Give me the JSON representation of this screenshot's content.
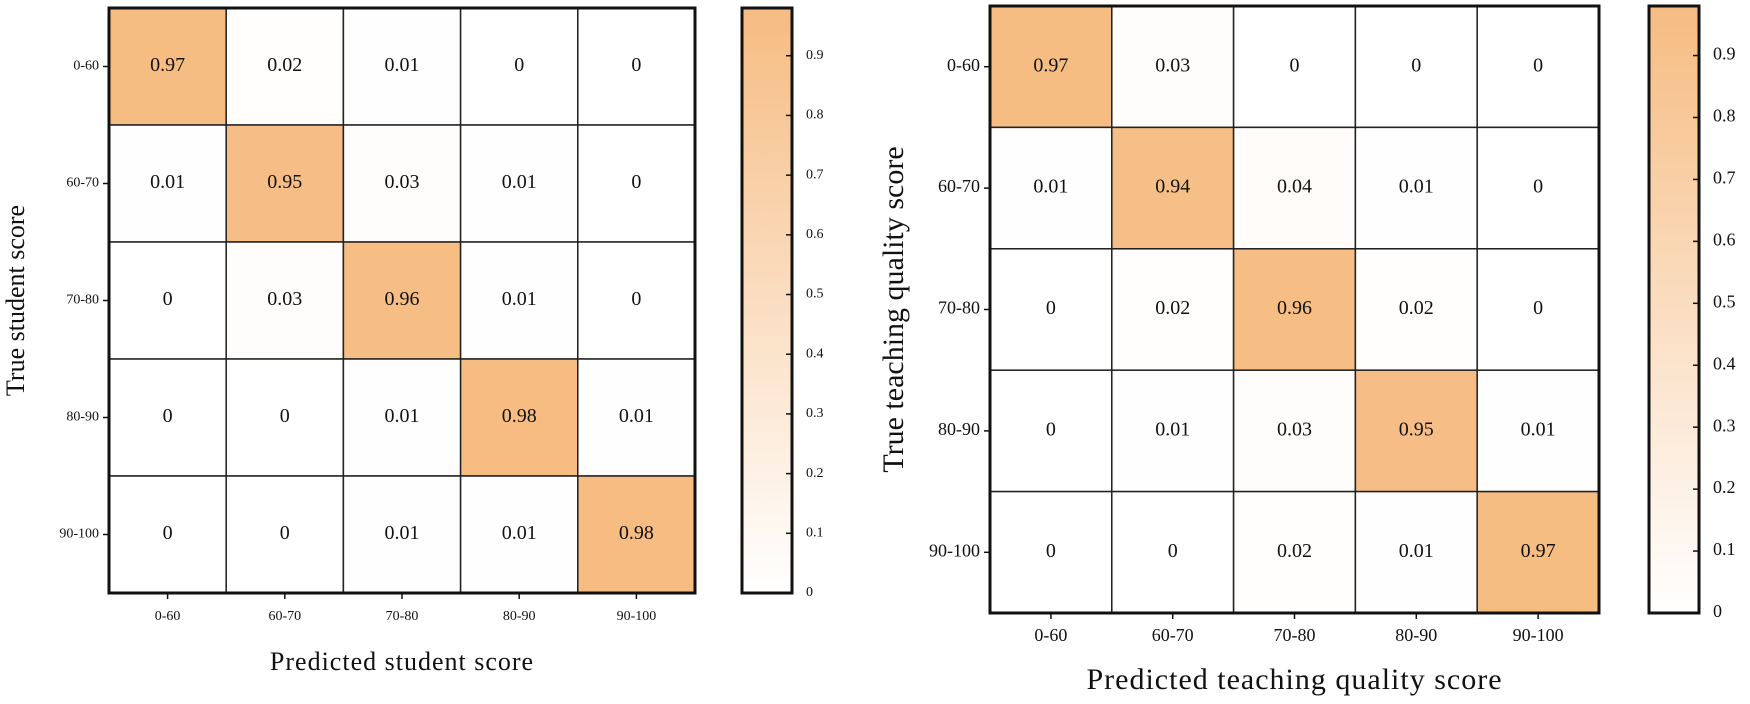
{
  "chart_data": [
    {
      "type": "heatmap",
      "x_label": "Predicted student score",
      "y_label": "True student score",
      "categories": [
        "0-60",
        "60-70",
        "70-80",
        "80-90",
        "90-100"
      ],
      "y_categories": [
        "0-60",
        "60-70",
        "70-80",
        "80-90",
        "90-100"
      ],
      "values": [
        [
          0.97,
          0.02,
          0.01,
          0,
          0
        ],
        [
          0.01,
          0.95,
          0.03,
          0.01,
          0
        ],
        [
          0,
          0.03,
          0.96,
          0.01,
          0
        ],
        [
          0,
          0,
          0.01,
          0.98,
          0.01
        ],
        [
          0,
          0,
          0.01,
          0.01,
          0.98
        ]
      ],
      "colormap": [
        "#ffffff",
        "#f6bc82"
      ],
      "clim": [
        0,
        0.98
      ],
      "cticks": [
        0,
        0.1,
        0.2,
        0.3,
        0.4,
        0.5,
        0.6,
        0.7,
        0.8,
        0.9
      ]
    },
    {
      "type": "heatmap",
      "x_label": "Predicted teaching quality score",
      "y_label": "True teaching quality score",
      "categories": [
        "0-60",
        "60-70",
        "70-80",
        "80-90",
        "90-100"
      ],
      "y_categories": [
        "0-60",
        "60-70",
        "70-80",
        "80-90",
        "90-100"
      ],
      "values": [
        [
          0.97,
          0.03,
          0,
          0,
          0
        ],
        [
          0.01,
          0.94,
          0.04,
          0.01,
          0
        ],
        [
          0,
          0.02,
          0.96,
          0.02,
          0
        ],
        [
          0,
          0.01,
          0.03,
          0.95,
          0.01
        ],
        [
          0,
          0,
          0.02,
          0.01,
          0.97
        ]
      ],
      "colormap": [
        "#ffffff",
        "#f6bc82"
      ],
      "clim": [
        0,
        0.98
      ],
      "cticks": [
        0,
        0.1,
        0.2,
        0.3,
        0.4,
        0.5,
        0.6,
        0.7,
        0.8,
        0.9
      ]
    }
  ]
}
